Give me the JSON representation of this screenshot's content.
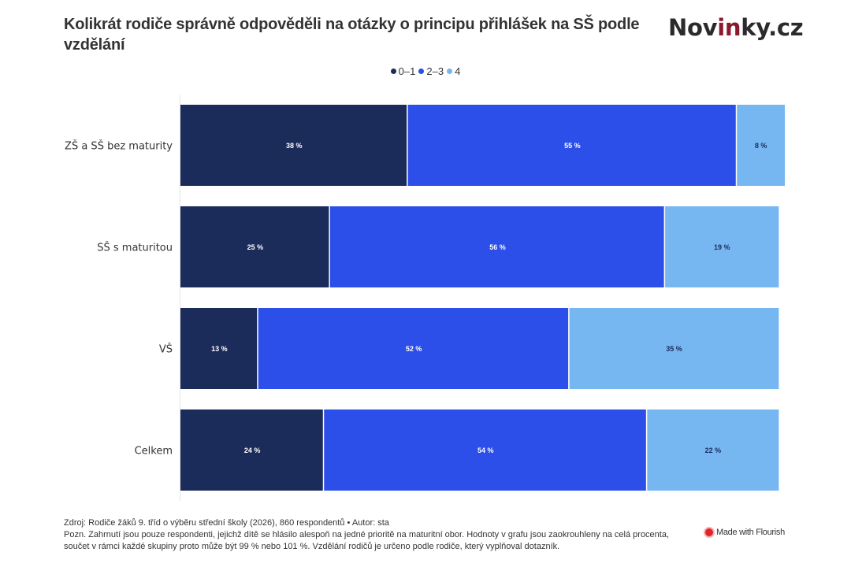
{
  "header": {
    "title": "Kolikrát rodiče správně odpověděli na otázky o principu přihlášek na SŠ podle vzdělání",
    "logo_main_a": "Nov",
    "logo_accent": "in",
    "logo_main_b": "ky.cz"
  },
  "colors": {
    "series": [
      "#1b2b5a",
      "#2b4fe8",
      "#76b7f2"
    ],
    "label_text": [
      "#ffffff",
      "#ffffff",
      "#1b2b5a"
    ],
    "logo_accent": "#8a1a2e"
  },
  "chart_data": {
    "type": "bar",
    "orientation": "horizontal",
    "stacked": true,
    "title": "Kolikrát rodiče správně odpověděli na otázky o principu přihlášek na SŠ podle vzdělání",
    "xlabel": "",
    "ylabel": "",
    "categories": [
      "ZŠ a SŠ bez maturity",
      "SŠ s maturitou",
      "VŠ",
      "Celkem"
    ],
    "series": [
      {
        "name": "0–1",
        "values": [
          38,
          25,
          13,
          24
        ]
      },
      {
        "name": "2–3",
        "values": [
          55,
          56,
          52,
          54
        ]
      },
      {
        "name": "4",
        "values": [
          8,
          19,
          35,
          22
        ]
      }
    ],
    "value_suffix": " %",
    "xlim": [
      0,
      101
    ],
    "grid": false,
    "legend_position": "top-center"
  },
  "footer": {
    "source": "Zdroj: Rodiče žáků 9. tříd o výběru střední školy (2026), 860 respondentů • Autor: sta",
    "note": "Pozn. Zahrnutí jsou pouze respondenti, jejichž dítě se hlásilo alespoň na jedné prioritě na maturitní obor. Hodnoty v grafu jsou zaokrouhleny na celá procenta, součet v rámci každé skupiny proto může být 99 % nebo 101 %. Vzdělání rodičů je určeno podle rodiče, který vyplňoval dotazník.",
    "flourish": "Made with Flourish"
  }
}
